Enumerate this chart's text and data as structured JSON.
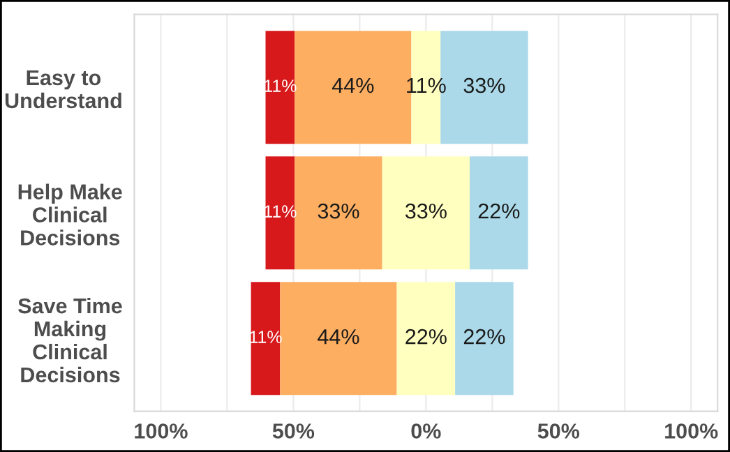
{
  "chart_data": {
    "type": "bar",
    "orientation": "horizontal",
    "stacked": true,
    "categories": [
      "Easy to\nUnderstand",
      "Help Make\nClinical\nDecisions",
      "Save Time\nMaking\nClinical\nDecisions"
    ],
    "series": [
      {
        "color": "#d7191c",
        "values": [
          11,
          11,
          11
        ],
        "value_labels": [
          "11%",
          "11%",
          "11%"
        ],
        "base": [
          -60.5,
          -60.5,
          -66
        ]
      },
      {
        "color": "#fdae61",
        "values": [
          44,
          33,
          44
        ],
        "value_labels": [
          "44%",
          "33%",
          "44%"
        ],
        "base": [
          -49.5,
          -49.5,
          -55
        ]
      },
      {
        "color": "#ffffbf",
        "values": [
          11,
          33,
          22
        ],
        "value_labels": [
          "11%",
          "33%",
          "22%"
        ],
        "base": [
          -5.5,
          -16.5,
          -11
        ]
      },
      {
        "color": "#abd9e9",
        "values": [
          33,
          22,
          22
        ],
        "value_labels": [
          "33%",
          "22%",
          "22%"
        ],
        "base": [
          5.5,
          16.5,
          11
        ]
      }
    ],
    "xlim": [
      -110,
      110
    ],
    "xticks": [
      {
        "value": -100,
        "label": "100%"
      },
      {
        "value": -75,
        "label": null
      },
      {
        "value": -50,
        "label": "50%"
      },
      {
        "value": -25,
        "label": null
      },
      {
        "value": 0,
        "label": "0%"
      },
      {
        "value": 25,
        "label": null
      },
      {
        "value": 50,
        "label": "50%"
      },
      {
        "value": 75,
        "label": null
      },
      {
        "value": 100,
        "label": "100%"
      }
    ],
    "grid": "x",
    "legend": false
  }
}
